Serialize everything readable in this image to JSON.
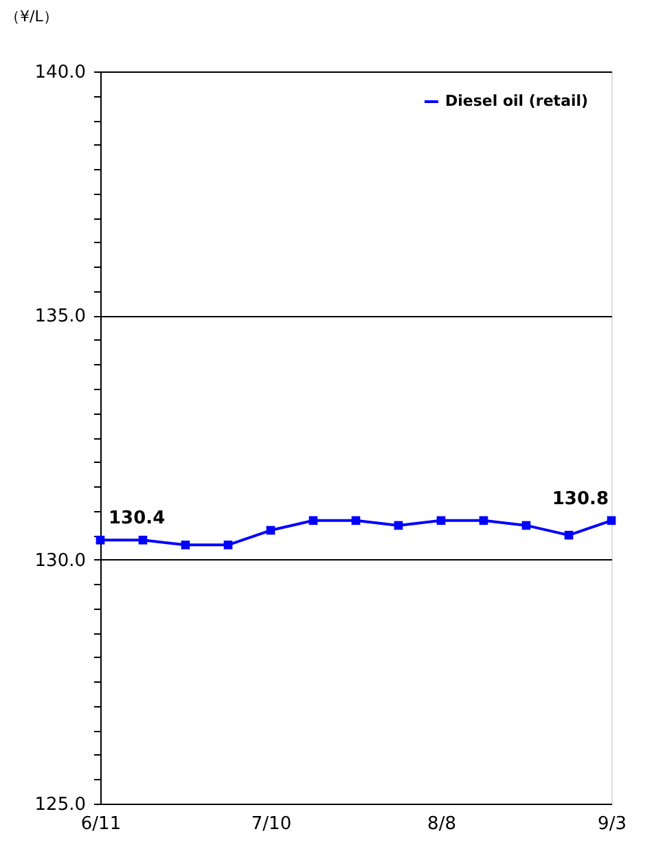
{
  "chart_data": {
    "type": "line",
    "ylabel": "（¥/L）",
    "categories": [
      "6/11",
      null,
      null,
      null,
      "7/10",
      null,
      null,
      null,
      "8/8",
      null,
      null,
      null,
      "9/3"
    ],
    "series": [
      {
        "name": "Diesel oil (retail)",
        "color": "#0000ff",
        "values": [
          130.4,
          130.4,
          130.3,
          130.3,
          130.6,
          130.8,
          130.8,
          130.7,
          130.8,
          130.8,
          130.7,
          130.5,
          130.8
        ],
        "value_labels": [
          "130.4",
          null,
          null,
          null,
          null,
          null,
          null,
          null,
          null,
          null,
          null,
          null,
          "130.8"
        ]
      }
    ],
    "ylim": [
      125,
      140
    ],
    "yticks": [
      {
        "value": 125,
        "label": "125.0"
      },
      {
        "value": 125.5,
        "label": null
      },
      {
        "value": 126,
        "label": null
      },
      {
        "value": 126.5,
        "label": null
      },
      {
        "value": 127,
        "label": null
      },
      {
        "value": 127.5,
        "label": null
      },
      {
        "value": 128,
        "label": null
      },
      {
        "value": 128.5,
        "label": null
      },
      {
        "value": 129,
        "label": null
      },
      {
        "value": 129.5,
        "label": null
      },
      {
        "value": 130,
        "label": "130.0"
      },
      {
        "value": 130.5,
        "label": null
      },
      {
        "value": 131,
        "label": null
      },
      {
        "value": 131.5,
        "label": null
      },
      {
        "value": 132,
        "label": null
      },
      {
        "value": 132.5,
        "label": null
      },
      {
        "value": 133,
        "label": null
      },
      {
        "value": 133.5,
        "label": null
      },
      {
        "value": 134,
        "label": null
      },
      {
        "value": 134.5,
        "label": null
      },
      {
        "value": 135,
        "label": "135.0"
      },
      {
        "value": 135.5,
        "label": null
      },
      {
        "value": 136,
        "label": null
      },
      {
        "value": 136.5,
        "label": null
      },
      {
        "value": 137,
        "label": null
      },
      {
        "value": 137.5,
        "label": null
      },
      {
        "value": 138,
        "label": null
      },
      {
        "value": 138.5,
        "label": null
      },
      {
        "value": 139,
        "label": null
      },
      {
        "value": 139.5,
        "label": null
      },
      {
        "value": 140,
        "label": "140.0"
      }
    ],
    "grid": "y",
    "legend": "top right",
    "marker": "square",
    "line_style": "solid"
  }
}
